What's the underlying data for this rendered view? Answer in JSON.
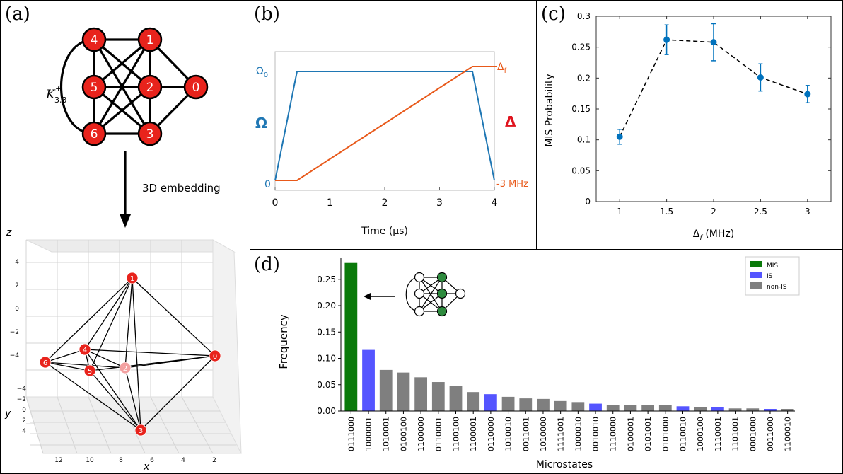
{
  "panels": {
    "a": {
      "label": "(a)",
      "graph_name": "K",
      "graph_sub": "3,3",
      "graph_sup": "+",
      "arrow_label": "3D embedding",
      "nodes": [
        {
          "id": "4",
          "label": "4"
        },
        {
          "id": "1",
          "label": "1"
        },
        {
          "id": "5",
          "label": "5"
        },
        {
          "id": "2",
          "label": "2"
        },
        {
          "id": "0",
          "label": "0"
        },
        {
          "id": "6",
          "label": "6"
        },
        {
          "id": "3",
          "label": "3"
        }
      ],
      "embedding": {
        "z_axis_label": "z",
        "y_axis_label": "y",
        "x_axis_label": "x",
        "z_ticks": [
          "4",
          "2",
          "0",
          "−2",
          "−4"
        ],
        "y_ticks": [
          "−4",
          "−2",
          "0",
          "2",
          "4"
        ],
        "x_ticks": [
          "12",
          "10",
          "8",
          "6",
          "4",
          "2"
        ]
      }
    },
    "b": {
      "label": "(b)",
      "xlabel": "Time (μs)",
      "left_axis": "Ω",
      "right_axis": "Δ",
      "omega0": "Ω",
      "omega0_sub": "0",
      "deltaf": "Δ",
      "deltaf_sub": "f",
      "left_zero": "0",
      "right_min": "-3 MHz",
      "x_ticks": [
        "0",
        "1",
        "2",
        "3",
        "4"
      ],
      "colors": {
        "omega": "#1f77b4",
        "delta": "#e8591a",
        "delta_label": "#e0141e"
      }
    },
    "c": {
      "label": "(c)",
      "ylabel": "MIS Probability",
      "xlabel": "Δ",
      "xlabel_sub": "f",
      "xlabel_unit": " (MHz)",
      "color": "#0072bd"
    },
    "d": {
      "label": "(d)",
      "ylabel": "Frequency",
      "xlabel": "Microstates",
      "legend": [
        {
          "name": "MIS",
          "color": "#0a7a0a"
        },
        {
          "name": "IS",
          "color": "#5555ff"
        },
        {
          "name": "non-IS",
          "color": "#7f7f7f"
        }
      ]
    }
  },
  "chart_data": [
    {
      "type": "line",
      "panel": "b",
      "x": [
        0,
        0.4,
        3.6,
        4.0
      ],
      "series": [
        {
          "name": "Ω",
          "x": [
            0,
            0.4,
            3.6,
            4.0
          ],
          "values": [
            0,
            1,
            1,
            0
          ]
        },
        {
          "name": "Δ",
          "x": [
            0,
            0.4,
            3.6,
            4.0
          ],
          "values": [
            0,
            0,
            1,
            1
          ]
        }
      ],
      "xlim": [
        0,
        4
      ],
      "xlabel": "Time (μs)"
    },
    {
      "type": "line",
      "panel": "c",
      "x": [
        1,
        1.5,
        2,
        2.5,
        3
      ],
      "values": [
        0.105,
        0.262,
        0.258,
        0.201,
        0.174
      ],
      "errors": [
        0.012,
        0.024,
        0.03,
        0.022,
        0.014
      ],
      "xlim": [
        0.75,
        3.25
      ],
      "ylim": [
        0,
        0.3
      ],
      "x_ticks": [
        "1",
        "1.5",
        "2",
        "2.5",
        "3"
      ],
      "y_ticks": [
        "0",
        "0.05",
        "0.1",
        "0.15",
        "0.2",
        "0.25",
        "0.3"
      ],
      "xlabel": "Δf (MHz)",
      "ylabel": "MIS Probability"
    },
    {
      "type": "bar",
      "panel": "d",
      "categories": [
        "0111000",
        "1000001",
        "1010001",
        "0100100",
        "1100000",
        "0110001",
        "1100100",
        "1100001",
        "0110000",
        "1010010",
        "0011001",
        "1010000",
        "1111001",
        "1000010",
        "0010010",
        "1110000",
        "0100001",
        "0101001",
        "0101000",
        "0110010",
        "1000100",
        "1110001",
        "1101001",
        "0001000",
        "0011000",
        "1100010"
      ],
      "values": [
        0.281,
        0.116,
        0.078,
        0.073,
        0.064,
        0.055,
        0.048,
        0.036,
        0.032,
        0.027,
        0.024,
        0.023,
        0.019,
        0.017,
        0.014,
        0.012,
        0.012,
        0.011,
        0.011,
        0.009,
        0.008,
        0.008,
        0.005,
        0.005,
        0.004,
        0.004
      ],
      "classes": [
        "MIS",
        "IS",
        "non-IS",
        "non-IS",
        "non-IS",
        "non-IS",
        "non-IS",
        "non-IS",
        "IS",
        "non-IS",
        "non-IS",
        "non-IS",
        "non-IS",
        "non-IS",
        "IS",
        "non-IS",
        "non-IS",
        "non-IS",
        "non-IS",
        "IS",
        "non-IS",
        "IS",
        "non-IS",
        "non-IS",
        "IS",
        "non-IS"
      ],
      "ylim": [
        0,
        0.29
      ],
      "y_ticks": [
        "0.00",
        "0.05",
        "0.10",
        "0.15",
        "0.20",
        "0.25"
      ],
      "xlabel": "Microstates",
      "ylabel": "Frequency",
      "legend_position": "top-right"
    }
  ]
}
